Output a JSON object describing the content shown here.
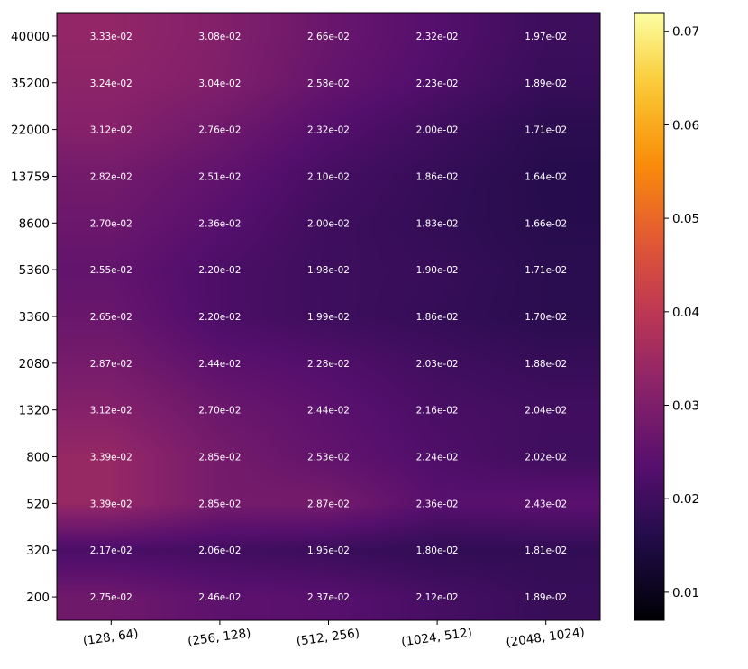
{
  "chart_data": {
    "type": "heatmap",
    "title": "",
    "xlabel": "",
    "ylabel": "",
    "x_categories": [
      "(128, 64)",
      "(256, 128)",
      "(512, 256)",
      "(1024, 512)",
      "(2048, 1024)"
    ],
    "y_categories": [
      "40000",
      "35200",
      "22000",
      "13759",
      "8600",
      "5360",
      "3360",
      "2080",
      "1320",
      "800",
      "520",
      "320",
      "200"
    ],
    "values": [
      [
        0.0333,
        0.0308,
        0.0266,
        0.0232,
        0.0197
      ],
      [
        0.0324,
        0.0304,
        0.0258,
        0.0223,
        0.0189
      ],
      [
        0.0312,
        0.0276,
        0.0232,
        0.02,
        0.0171
      ],
      [
        0.0282,
        0.0251,
        0.021,
        0.0186,
        0.0164
      ],
      [
        0.027,
        0.0236,
        0.02,
        0.0183,
        0.0166
      ],
      [
        0.0255,
        0.022,
        0.0198,
        0.019,
        0.0171
      ],
      [
        0.0265,
        0.022,
        0.0199,
        0.0186,
        0.017
      ],
      [
        0.0287,
        0.0244,
        0.0228,
        0.0203,
        0.0188
      ],
      [
        0.0312,
        0.027,
        0.0244,
        0.0216,
        0.0204
      ],
      [
        0.0339,
        0.0285,
        0.0253,
        0.0224,
        0.0202
      ],
      [
        0.0339,
        0.0285,
        0.0287,
        0.0236,
        0.0243
      ],
      [
        0.0217,
        0.0206,
        0.0195,
        0.018,
        0.0181
      ],
      [
        0.0275,
        0.0246,
        0.0237,
        0.0212,
        0.0189
      ]
    ],
    "cell_labels": [
      [
        "3.33e-02",
        "3.08e-02",
        "2.66e-02",
        "2.32e-02",
        "1.97e-02"
      ],
      [
        "3.24e-02",
        "3.04e-02",
        "2.58e-02",
        "2.23e-02",
        "1.89e-02"
      ],
      [
        "3.12e-02",
        "2.76e-02",
        "2.32e-02",
        "2.00e-02",
        "1.71e-02"
      ],
      [
        "2.82e-02",
        "2.51e-02",
        "2.10e-02",
        "1.86e-02",
        "1.64e-02"
      ],
      [
        "2.70e-02",
        "2.36e-02",
        "2.00e-02",
        "1.83e-02",
        "1.66e-02"
      ],
      [
        "2.55e-02",
        "2.20e-02",
        "1.98e-02",
        "1.90e-02",
        "1.71e-02"
      ],
      [
        "2.65e-02",
        "2.20e-02",
        "1.99e-02",
        "1.86e-02",
        "1.70e-02"
      ],
      [
        "2.87e-02",
        "2.44e-02",
        "2.28e-02",
        "2.03e-02",
        "1.88e-02"
      ],
      [
        "3.12e-02",
        "2.70e-02",
        "2.44e-02",
        "2.16e-02",
        "2.04e-02"
      ],
      [
        "3.39e-02",
        "2.85e-02",
        "2.53e-02",
        "2.24e-02",
        "2.02e-02"
      ],
      [
        "3.39e-02",
        "2.85e-02",
        "2.87e-02",
        "2.36e-02",
        "2.43e-02"
      ],
      [
        "2.17e-02",
        "2.06e-02",
        "1.95e-02",
        "1.80e-02",
        "1.81e-02"
      ],
      [
        "2.75e-02",
        "2.46e-02",
        "2.37e-02",
        "2.12e-02",
        "1.89e-02"
      ]
    ],
    "colormap": "inferno",
    "colorbar": {
      "range": [
        0.007,
        0.072
      ],
      "ticks": [
        0.01,
        0.02,
        0.03,
        0.04,
        0.05,
        0.06,
        0.07
      ],
      "tick_labels": [
        "0.01",
        "0.02",
        "0.03",
        "0.04",
        "0.05",
        "0.06",
        "0.07"
      ]
    },
    "interpolation": "smooth",
    "grid": false,
    "cell_label_color": "#ffffff"
  }
}
